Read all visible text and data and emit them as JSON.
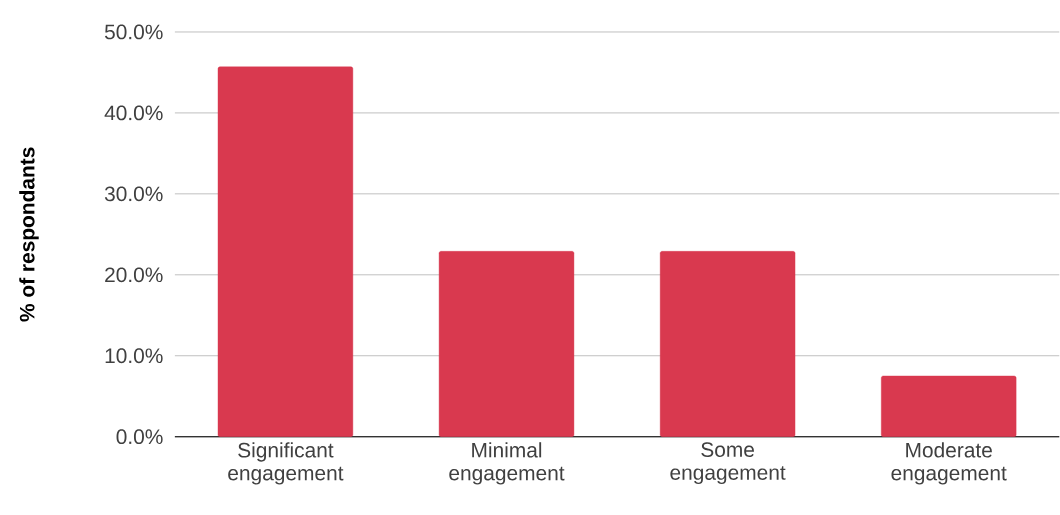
{
  "chart_data": {
    "type": "bar",
    "ylabel": "% of respondants",
    "categories": [
      "Significant engagement",
      "Minimal engagement",
      "Some engagement",
      "Moderate engagement"
    ],
    "values": [
      45.7,
      22.9,
      22.9,
      7.5
    ],
    "color": "#d9394f",
    "ylim": [
      0,
      50
    ],
    "yticks": [
      {
        "value": 0,
        "label": "0.0%"
      },
      {
        "value": 10,
        "label": "10.0%"
      },
      {
        "value": 20,
        "label": "20.0%"
      },
      {
        "value": 30,
        "label": "30.0%"
      },
      {
        "value": 40,
        "label": "40.0%"
      },
      {
        "value": 50,
        "label": "50.0%"
      }
    ],
    "grid": "y"
  }
}
